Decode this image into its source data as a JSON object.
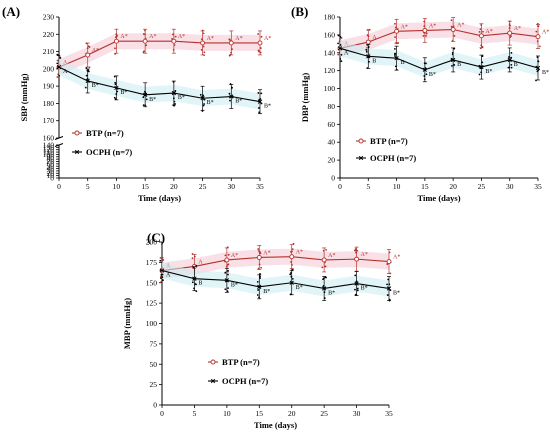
{
  "colors": {
    "btp": "#b5312b",
    "ocph": "#000000",
    "btp_fill": "#f4c6d2",
    "ocph_fill": "#c9ecf3"
  },
  "chart_data": [
    {
      "type": "line",
      "panel_label": "(A)",
      "xlabel": "Time (days)",
      "ylabel": "SBP (mmHg)",
      "x": [
        0,
        5,
        10,
        15,
        20,
        25,
        30,
        35
      ],
      "xlim": [
        0,
        35
      ],
      "ylim": [
        0,
        230
      ],
      "axis_break": true,
      "lower_ticks": [
        0,
        10,
        20,
        30,
        40,
        50,
        60,
        70,
        80,
        90,
        100,
        110,
        120,
        130,
        140
      ],
      "upper_ticks": [
        160,
        170,
        180,
        190,
        200,
        210,
        220,
        230
      ],
      "series": [
        {
          "name": "BTP (n=7)",
          "values": [
            201,
            208,
            216,
            216,
            216,
            215,
            215,
            215
          ],
          "labels": [
            "A",
            "A*",
            "A*",
            "A*",
            "A*",
            "A*",
            "A*",
            "A*"
          ]
        },
        {
          "name": "OCPH (n=7)",
          "values": [
            201,
            193,
            189,
            185,
            186,
            183,
            184,
            181
          ],
          "labels": [
            "A",
            "B*",
            "B*",
            "B*",
            "B*",
            "B*",
            "B*",
            "B*"
          ]
        }
      ]
    },
    {
      "type": "line",
      "panel_label": "(B)",
      "xlabel": "Time (days)",
      "ylabel": "DBP (mmHg)",
      "x": [
        0,
        5,
        10,
        15,
        20,
        25,
        30,
        35
      ],
      "xlim": [
        0,
        35
      ],
      "ylim": [
        0,
        180
      ],
      "axis_break": false,
      "ticks": [
        0,
        20,
        40,
        60,
        80,
        100,
        120,
        140,
        160,
        180
      ],
      "series": [
        {
          "name": "BTP (n=7)",
          "values": [
            145,
            152,
            164,
            165,
            166,
            159,
            162,
            158
          ],
          "labels": [
            "A",
            "A",
            "A*",
            "A*",
            "A*",
            "A*",
            "A*",
            "A*"
          ]
        },
        {
          "name": "OCPH (n=7)",
          "values": [
            145,
            136,
            134,
            121,
            132,
            124,
            132,
            123
          ],
          "labels": [
            "A",
            "B",
            "B",
            "B*",
            "B",
            "B*",
            "B",
            "B*"
          ]
        }
      ]
    },
    {
      "type": "line",
      "panel_label": "(C)",
      "xlabel": "Time (days)",
      "ylabel": "MBP (mmHg)",
      "x": [
        0,
        5,
        10,
        15,
        20,
        25,
        30,
        35
      ],
      "xlim": [
        0,
        35
      ],
      "ylim": [
        0,
        200
      ],
      "axis_break": false,
      "ticks": [
        0,
        25,
        50,
        75,
        100,
        125,
        150,
        175,
        200
      ],
      "series": [
        {
          "name": "BTP (n=7)",
          "values": [
            165,
            170,
            178,
            181,
            182,
            178,
            179,
            176
          ],
          "labels": [
            "A",
            "A",
            "A*",
            "A*",
            "A*",
            "A*",
            "A*",
            "A*"
          ]
        },
        {
          "name": "OCPH (n=7)",
          "values": [
            165,
            155,
            153,
            145,
            150,
            143,
            149,
            143
          ],
          "labels": [
            "A",
            "B",
            "B*",
            "B*",
            "B*",
            "B*",
            "B*",
            "B*"
          ]
        }
      ]
    }
  ]
}
